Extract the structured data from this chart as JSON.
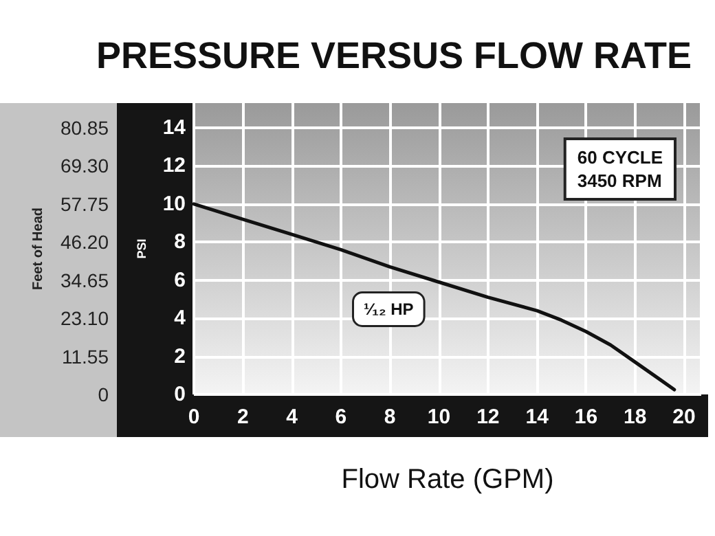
{
  "chart_data": {
    "type": "line",
    "title": "PRESSURE VERSUS FLOW RATE",
    "xlabel": "Flow Rate (GPM)",
    "ylabel": "PSI",
    "y2label": "Feet of Head",
    "x": [
      0,
      2,
      4,
      6,
      8,
      10,
      12,
      14,
      15,
      16,
      17,
      18,
      19,
      19.6
    ],
    "series": [
      {
        "color": "#111111",
        "values": [
          10,
          9.2,
          8.4,
          7.6,
          6.7,
          5.9,
          5.1,
          4.4,
          3.9,
          3.3,
          2.6,
          1.7,
          0.8,
          0.25
        ]
      }
    ],
    "xlim": [
      0,
      20.7
    ],
    "xticks": [
      0,
      2,
      4,
      6,
      8,
      10,
      12,
      14,
      16,
      18,
      20
    ],
    "ylim": [
      0,
      15.3
    ],
    "yticks": [
      0,
      2,
      4,
      6,
      8,
      10,
      12,
      14
    ],
    "y2lim": [
      0,
      88.3575
    ],
    "y2ticks": [
      0,
      11.55,
      {
        "value": 23.1,
        "label": "23.10"
      },
      34.65,
      {
        "value": 46.2,
        "label": "46.20"
      },
      57.75,
      {
        "value": 69.3,
        "label": "69.30"
      },
      80.85
    ],
    "annotations": [
      "60 CYCLE\n3450 RPM",
      "¹⁄₁₂ HP"
    ],
    "grid": true,
    "marker": "none",
    "line_style": "solid"
  }
}
